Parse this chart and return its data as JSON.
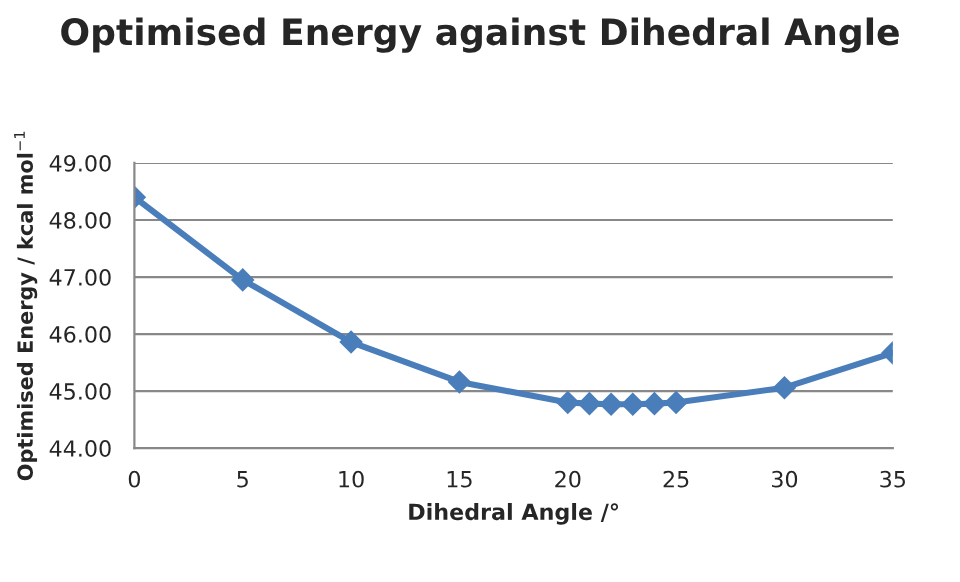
{
  "chart_data": {
    "type": "line",
    "title": "Optimised Energy against Dihedral Angle",
    "xlabel": "Dihedral Angle /°",
    "ylabel": "Optimised Energy / kcal mol$^{−1}$",
    "x": [
      0,
      5,
      10,
      15,
      20,
      21,
      22,
      23,
      24,
      25,
      30,
      35
    ],
    "series": [
      {
        "color": "#4a7ebb",
        "values": [
          48.4,
          46.95,
          45.86,
          45.16,
          44.8,
          44.78,
          44.77,
          44.77,
          44.78,
          44.8,
          45.06,
          45.67
        ]
      }
    ],
    "xlim": [
      0,
      35
    ],
    "xticks": [
      0,
      5,
      10,
      15,
      20,
      25,
      30,
      35
    ],
    "ylim": [
      44,
      49
    ],
    "yticks": [
      {
        "value": 44,
        "label": "44.00"
      },
      {
        "value": 45,
        "label": "45.00"
      },
      {
        "value": 46,
        "label": "46.00"
      },
      {
        "value": 47,
        "label": "47.00"
      },
      {
        "value": 48,
        "label": "48.00"
      },
      {
        "value": 49,
        "label": "49.00"
      }
    ],
    "grid": "y",
    "marker": "diamond",
    "line_style": "solid",
    "legend": false
  }
}
